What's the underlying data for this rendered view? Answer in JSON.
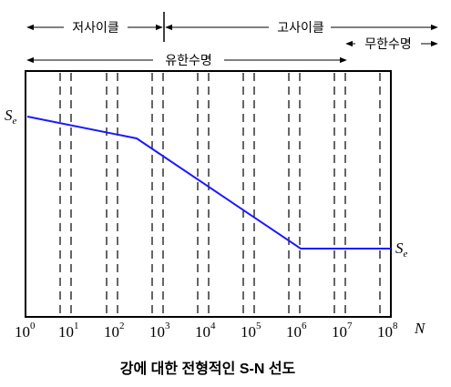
{
  "diagram": {
    "caption": "강에 대한 전형적인 S-N 선도",
    "regions": {
      "low_cycle": "저사이클",
      "high_cycle": "고사이클",
      "finite_life": "유한수명",
      "infinite_life": "무한수명"
    },
    "axis": {
      "x_variable": "N",
      "ticks": [
        {
          "base": "10",
          "exp": "0"
        },
        {
          "base": "10",
          "exp": "1"
        },
        {
          "base": "10",
          "exp": "2"
        },
        {
          "base": "10",
          "exp": "3"
        },
        {
          "base": "10",
          "exp": "4"
        },
        {
          "base": "10",
          "exp": "5"
        },
        {
          "base": "10",
          "exp": "6"
        },
        {
          "base": "10",
          "exp": "7"
        },
        {
          "base": "10",
          "exp": "8"
        }
      ]
    },
    "labels": {
      "left_symbol": "S",
      "left_subscript": "e",
      "right_symbol": "S",
      "right_subscript": "e"
    },
    "colors": {
      "curve": "#1a1aff",
      "lines": "#000000"
    }
  }
}
